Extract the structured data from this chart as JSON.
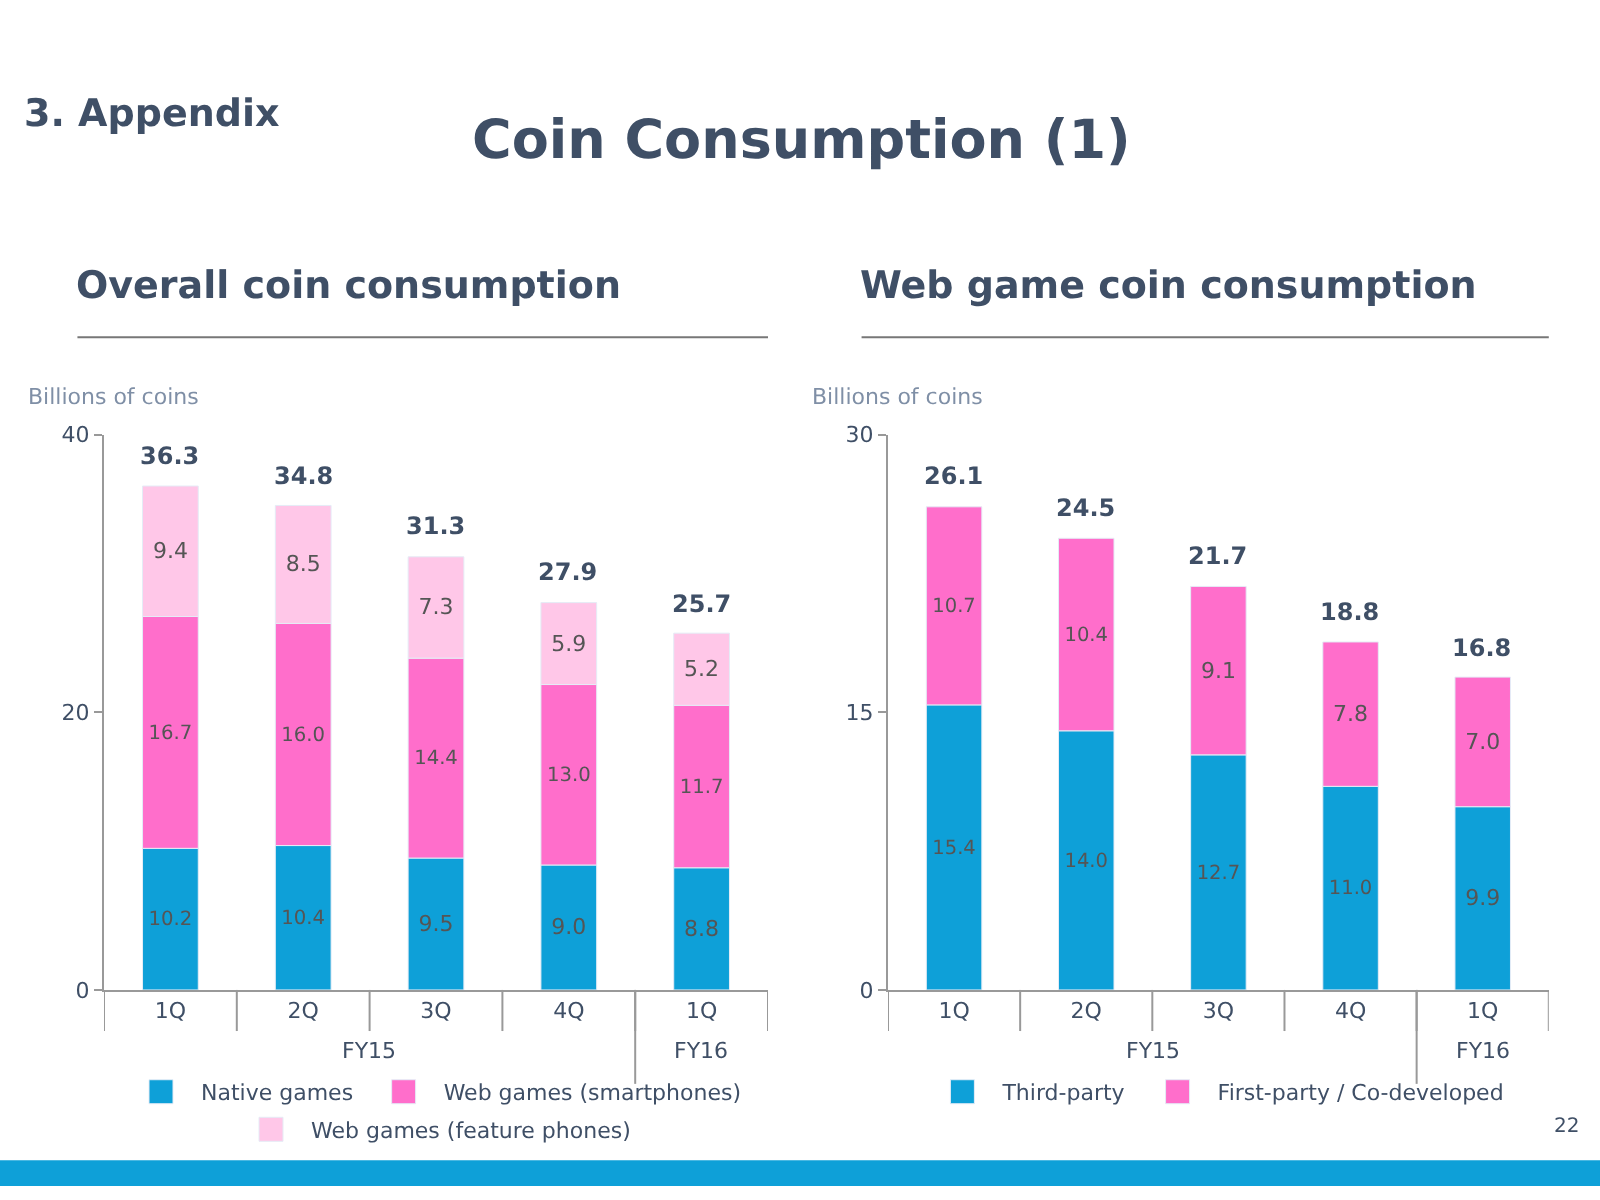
{
  "chart_data": [
    {
      "type": "bar",
      "title": "Overall coin consumption",
      "ylabel": "Billions of coins",
      "stacked": true,
      "legend": "bottom",
      "annotations": [
        "3. Appendix",
        "Coin Consumption (1)",
        "FY15",
        "FY16"
      ],
      "categories": [
        "1Q",
        "2Q",
        "3Q",
        "4Q",
        "1Q"
      ],
      "ylim": [
        0,
        40
      ],
      "yticks": [
        0,
        20,
        40
      ],
      "totals": [
        "36.3",
        "34.8",
        "31.3",
        "27.9",
        "25.7"
      ],
      "series": [
        {
          "name": "Native games",
          "color": "#0ea0d8",
          "values": [
            10.2,
            10.4,
            9.5,
            9.0,
            8.8
          ],
          "value_labels": [
            "10.2",
            "10.4",
            "9.5",
            "9.0",
            "8.8"
          ]
        },
        {
          "name": "Web games (smartphones)",
          "color": "#ff6ecb",
          "values": [
            16.7,
            16.0,
            14.4,
            13.0,
            11.7
          ],
          "value_labels": [
            "16.7",
            "16.0",
            "14.4",
            "13.0",
            "11.7"
          ]
        },
        {
          "name": "Web games (feature phones)",
          "color": "#ffc7e8",
          "values": [
            9.4,
            8.5,
            7.3,
            5.9,
            5.2
          ],
          "value_labels": [
            "9.4",
            "8.5",
            "7.3",
            "5.9",
            "5.2"
          ]
        }
      ]
    },
    {
      "type": "bar",
      "title": "Web game coin consumption",
      "ylabel": "Billions of coins",
      "stacked": true,
      "legend": "bottom",
      "annotations": [
        "FY15",
        "FY16",
        "22"
      ],
      "categories": [
        "1Q",
        "2Q",
        "3Q",
        "4Q",
        "1Q"
      ],
      "ylim": [
        0,
        30
      ],
      "yticks": [
        0,
        15,
        30
      ],
      "totals": [
        "26.1",
        "24.5",
        "21.7",
        "18.8",
        "16.8"
      ],
      "series": [
        {
          "name": "Third-party",
          "color": "#0ea0d8",
          "values": [
            15.4,
            14.0,
            12.7,
            11.0,
            9.9
          ],
          "value_labels": [
            "15.4",
            "14.0",
            "12.7",
            "11.0",
            "9.9"
          ]
        },
        {
          "name": "First-party / Co-developed",
          "color": "#ff6ecb",
          "values": [
            10.7,
            10.4,
            9.1,
            7.8,
            7.0
          ],
          "value_labels": [
            "10.7",
            "10.4",
            "9.1",
            "7.8",
            "7.0"
          ]
        }
      ]
    }
  ]
}
